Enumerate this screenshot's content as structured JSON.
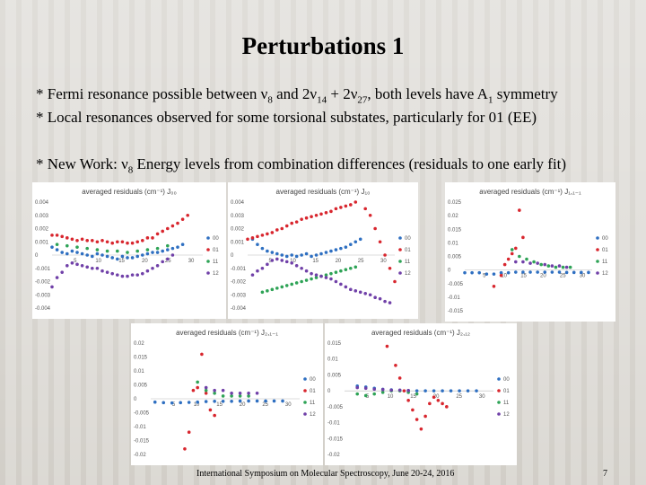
{
  "slide": {
    "title": "Perturbations 1",
    "bullet1_prefix": "* Fermi resonance possible between ν",
    "bullet1_sub1": "8",
    "bullet1_mid": " and 2ν",
    "bullet1_sub2": "14",
    "bullet1_mid2": " + 2ν",
    "bullet1_sub3": "27",
    "bullet1_mid3": ", both levels have A",
    "bullet1_sub4": "1",
    "bullet1_suffix": " symmetry",
    "bullet2": "* Local resonances observed for some torsional substates, particularly for 01 (EE)",
    "bullet3_prefix": "*  New Work: ν",
    "bullet3_sub": "8",
    "bullet3_suffix": " Energy levels from combination differences (residuals to one early fit)",
    "footer": "International Symposium on Molecular Spectroscopy, June 20-24, 2016",
    "page": "7"
  },
  "colors": {
    "00": "#2e6fc1",
    "01": "#d8262e",
    "11": "#2ea356",
    "12": "#7040a8"
  },
  "chart_data": [
    {
      "type": "scatter",
      "title": "averaged residuals (cm⁻¹)  J₀₀",
      "ylim": [
        -0.004,
        0.004
      ],
      "yticks": [
        "0.004",
        "0.003",
        "0.002",
        "0.001",
        "0",
        "-0.001",
        "-0.002",
        "-0.003",
        "-0.004"
      ],
      "xticks": [
        "5",
        "10",
        "15",
        "20",
        "25",
        "30"
      ],
      "xlim": [
        0,
        30
      ],
      "legend": [
        "00",
        "01",
        "11",
        "12"
      ],
      "series": [
        {
          "name": "00",
          "x": [
            0,
            1,
            2,
            3,
            4,
            5,
            6,
            7,
            8,
            9,
            10,
            11,
            12,
            13,
            14,
            15,
            16,
            17,
            18,
            19,
            20,
            21,
            22,
            23,
            24,
            25,
            26
          ],
          "y": [
            0.0006,
            0.0004,
            0.0002,
            0.0001,
            0.0003,
            0.0002,
            0.0001,
            0.0,
            -0.0001,
            0.0001,
            0.0,
            -0.0001,
            -0.0002,
            -0.0003,
            -0.0001,
            -0.0002,
            -0.0002,
            -0.0001,
            0.0,
            0.0001,
            0.0002,
            0.0002,
            0.0003,
            0.0004,
            0.0005,
            0.0006,
            0.0008
          ]
        },
        {
          "name": "01",
          "x": [
            0,
            1,
            2,
            3,
            4,
            5,
            6,
            7,
            8,
            9,
            10,
            11,
            12,
            13,
            14,
            15,
            16,
            17,
            18,
            19,
            20,
            21,
            22,
            23,
            24,
            25,
            26,
            27
          ],
          "y": [
            0.0015,
            0.0015,
            0.0014,
            0.0013,
            0.0012,
            0.0011,
            0.0012,
            0.0011,
            0.0011,
            0.001,
            0.0011,
            0.001,
            0.0009,
            0.001,
            0.001,
            0.0009,
            0.0009,
            0.001,
            0.0011,
            0.0013,
            0.0013,
            0.0016,
            0.0018,
            0.002,
            0.0022,
            0.0024,
            0.0027,
            0.003
          ]
        },
        {
          "name": "11",
          "x": [
            1,
            3,
            5,
            7,
            9,
            11,
            13,
            15,
            17,
            19,
            21,
            23
          ],
          "y": [
            0.0008,
            0.0007,
            0.0006,
            0.0005,
            0.0004,
            0.0003,
            0.0003,
            0.0002,
            0.0003,
            0.0004,
            0.0005,
            0.0007
          ]
        },
        {
          "name": "12",
          "x": [
            0,
            1,
            2,
            3,
            4,
            5,
            6,
            7,
            8,
            9,
            10,
            11,
            12,
            13,
            14,
            15,
            16,
            17,
            18,
            19,
            20,
            21,
            22,
            23,
            24
          ],
          "y": [
            -0.0024,
            -0.0017,
            -0.0013,
            -0.0008,
            -0.0006,
            -0.0007,
            -0.0008,
            -0.0009,
            -0.001,
            -0.001,
            -0.0012,
            -0.0013,
            -0.0014,
            -0.0015,
            -0.0016,
            -0.0016,
            -0.0015,
            -0.0015,
            -0.0014,
            -0.0012,
            -0.001,
            -0.0008,
            -0.0005,
            -0.0003,
            0.0
          ]
        }
      ]
    },
    {
      "type": "scatter",
      "title": "averaged residuals (cm⁻¹)  J₁₀",
      "ylim": [
        -0.004,
        0.004
      ],
      "yticks": [
        "0.004",
        "0.003",
        "0.002",
        "0.001",
        "0",
        "-0.001",
        "-0.002",
        "-0.003",
        "-0.004"
      ],
      "xticks": [
        "5",
        "10",
        "15",
        "20",
        "25",
        "30"
      ],
      "xlim": [
        0,
        30
      ],
      "legend": [
        "00",
        "01",
        "11",
        "12"
      ],
      "series": [
        {
          "name": "00",
          "x": [
            1,
            2,
            3,
            4,
            5,
            6,
            7,
            8,
            9,
            10,
            11,
            12,
            13,
            14,
            15,
            16,
            17,
            18,
            19,
            20,
            21,
            22,
            23
          ],
          "y": [
            0.0012,
            0.0008,
            0.0005,
            0.0003,
            0.0002,
            0.0001,
            0.0,
            -0.0001,
            0.0,
            -0.0001,
            0.0,
            0.0001,
            -0.0001,
            0.0,
            0.0001,
            0.0002,
            0.0003,
            0.0004,
            0.0005,
            0.0006,
            0.0008,
            0.001,
            0.0012
          ]
        },
        {
          "name": "01",
          "x": [
            0,
            1,
            2,
            3,
            4,
            5,
            6,
            7,
            8,
            9,
            10,
            11,
            12,
            13,
            14,
            15,
            16,
            17,
            18,
            19,
            20,
            21,
            22,
            23,
            24,
            25,
            26,
            27,
            28,
            29,
            30
          ],
          "y": [
            0.0012,
            0.0013,
            0.0014,
            0.0015,
            0.0016,
            0.0017,
            0.0019,
            0.002,
            0.0022,
            0.0024,
            0.0025,
            0.0027,
            0.0028,
            0.0029,
            0.003,
            0.0031,
            0.0032,
            0.0033,
            0.0035,
            0.0036,
            0.0037,
            0.0038,
            0.004,
            0.0042,
            0.0035,
            0.003,
            0.002,
            0.001,
            0.0,
            -0.001,
            -0.002
          ]
        },
        {
          "name": "11",
          "x": [
            3,
            4,
            5,
            6,
            7,
            8,
            9,
            10,
            11,
            12,
            13,
            14,
            15,
            16,
            17,
            18,
            19,
            20,
            21,
            22
          ],
          "y": [
            -0.0028,
            -0.0027,
            -0.0026,
            -0.0025,
            -0.0024,
            -0.0023,
            -0.0022,
            -0.0021,
            -0.002,
            -0.0019,
            -0.0018,
            -0.0017,
            -0.0016,
            -0.0015,
            -0.0014,
            -0.0013,
            -0.0012,
            -0.0011,
            -0.001,
            -0.0009
          ]
        },
        {
          "name": "12",
          "x": [
            1,
            2,
            3,
            4,
            5,
            6,
            7,
            8,
            9,
            10,
            11,
            12,
            13,
            14,
            15,
            16,
            17,
            18,
            19,
            20,
            21,
            22,
            23,
            24,
            25,
            26,
            27,
            28,
            29
          ],
          "y": [
            -0.0015,
            -0.0012,
            -0.001,
            -0.0007,
            -0.0004,
            -0.0003,
            -0.0004,
            -0.0005,
            -0.0006,
            -0.0008,
            -0.001,
            -0.0012,
            -0.0014,
            -0.0015,
            -0.0016,
            -0.0017,
            -0.0018,
            -0.002,
            -0.0022,
            -0.0024,
            -0.0026,
            -0.0027,
            -0.0028,
            -0.0029,
            -0.003,
            -0.0032,
            -0.0033,
            -0.0035,
            -0.0036
          ]
        }
      ]
    },
    {
      "type": "scatter",
      "title": "averaged residuals (cm⁻¹)  J₁,₁₋₁",
      "ylim": [
        -0.015,
        0.025
      ],
      "yticks": [
        "0.025",
        "0.02",
        "0.015",
        "0.01",
        "0.005",
        "0",
        "-0.005",
        "-0.01",
        "-0.015"
      ],
      "xticks": [
        "5",
        "10",
        "15",
        "20",
        "25",
        "30"
      ],
      "xlim": [
        0,
        35
      ],
      "legend": [
        "00",
        "01",
        "11",
        "12"
      ],
      "series": [
        {
          "name": "00",
          "x": [
            0,
            2,
            4,
            6,
            8,
            10,
            12,
            14,
            16,
            18,
            20,
            22,
            24,
            26,
            28,
            30,
            32,
            34
          ],
          "y": [
            -0.001,
            -0.001,
            -0.001,
            -0.0015,
            -0.0015,
            -0.001,
            -0.001,
            -0.0008,
            -0.0008,
            -0.0008,
            -0.0008,
            -0.0008,
            -0.0008,
            -0.0008,
            -0.0009,
            -0.0009,
            -0.0009,
            -0.0009
          ]
        },
        {
          "name": "01",
          "x": [
            8,
            10,
            11,
            12,
            13,
            14,
            15,
            16
          ],
          "y": [
            -0.006,
            -0.002,
            0.002,
            0.004,
            0.006,
            0.008,
            0.022,
            0.012
          ]
        },
        {
          "name": "11",
          "x": [
            13,
            15,
            17,
            19,
            21,
            23,
            25,
            27,
            29
          ],
          "y": [
            0.0075,
            0.005,
            0.004,
            0.003,
            0.002,
            0.0015,
            0.001,
            0.001,
            0.001
          ]
        },
        {
          "name": "12",
          "x": [
            14,
            16,
            18,
            20,
            22,
            24,
            26,
            28
          ],
          "y": [
            0.003,
            0.003,
            0.0025,
            0.0025,
            0.002,
            0.0015,
            0.0015,
            0.001
          ]
        }
      ]
    },
    {
      "type": "scatter",
      "title": "averaged residuals (cm⁻¹)  J₂,₁₋₁",
      "ylim": [
        -0.02,
        0.02
      ],
      "yticks": [
        "0.02",
        "0.015",
        "0.01",
        "0.005",
        "0",
        "-0.005",
        "-0.01",
        "-0.015",
        "-0.02"
      ],
      "xticks": [
        "5",
        "10",
        "15",
        "20",
        "25",
        "30"
      ],
      "xlim": [
        0,
        35
      ],
      "legend": [
        "00",
        "01",
        "11",
        "12"
      ],
      "series": [
        {
          "name": "00",
          "x": [
            1,
            3,
            5,
            7,
            9,
            11,
            13,
            15,
            17,
            19,
            21,
            23,
            25,
            27,
            29,
            31
          ],
          "y": [
            -0.0012,
            -0.0014,
            -0.0015,
            -0.0014,
            -0.0013,
            -0.0012,
            -0.001,
            -0.0009,
            -0.0009,
            -0.0009,
            -0.0008,
            -0.0008,
            -0.0008,
            -0.0008,
            -0.0008,
            -0.0008
          ]
        },
        {
          "name": "01",
          "x": [
            8,
            9,
            10,
            11,
            12,
            13,
            14,
            15
          ],
          "y": [
            -0.018,
            -0.012,
            0.003,
            0.004,
            0.016,
            0.002,
            -0.004,
            -0.006
          ]
        },
        {
          "name": "11",
          "x": [
            11,
            13,
            15,
            17,
            19,
            21,
            23
          ],
          "y": [
            0.006,
            0.003,
            0.002,
            0.001,
            0.001,
            0.001,
            0.001
          ]
        },
        {
          "name": "12",
          "x": [
            13,
            15,
            17,
            19,
            21,
            23,
            25
          ],
          "y": [
            0.004,
            0.003,
            0.003,
            0.002,
            0.002,
            0.002,
            0.002
          ]
        }
      ]
    },
    {
      "type": "scatter",
      "title": "averaged residuals (cm⁻¹)  J₂,₁₂",
      "ylim": [
        -0.02,
        0.015
      ],
      "yticks": [
        "0.015",
        "0.01",
        "0.005",
        "0",
        "-0.005",
        "-0.01",
        "-0.015",
        "-0.02"
      ],
      "xticks": [
        "5",
        "10",
        "15",
        "20",
        "25",
        "30"
      ],
      "xlim": [
        0,
        35
      ],
      "legend": [
        "00",
        "01",
        "11",
        "12"
      ],
      "series": [
        {
          "name": "00",
          "x": [
            3,
            5,
            7,
            9,
            11,
            13,
            15,
            17,
            19,
            21,
            23,
            25,
            27,
            29,
            31
          ],
          "y": [
            0.0015,
            0.0012,
            0.0008,
            0.0005,
            0.0003,
            0.0002,
            0.0001,
            0.0,
            0.0,
            0.0,
            0.0,
            0.0,
            0.0,
            0.0,
            0.0
          ]
        },
        {
          "name": "01",
          "x": [
            10,
            12,
            13,
            14,
            15,
            16,
            17,
            18,
            19,
            20,
            21,
            22,
            23,
            24
          ],
          "y": [
            0.014,
            0.008,
            0.004,
            0.0,
            -0.003,
            -0.006,
            -0.009,
            -0.012,
            -0.008,
            -0.004,
            -0.002,
            -0.003,
            -0.004,
            -0.005
          ]
        },
        {
          "name": "11",
          "x": [
            3,
            5,
            7,
            9,
            11,
            13,
            15,
            17
          ],
          "y": [
            -0.001,
            -0.0015,
            -0.001,
            -0.0005,
            0.0,
            0.0,
            -0.0005,
            -0.001
          ]
        },
        {
          "name": "12",
          "x": [
            3,
            5,
            7,
            9,
            11,
            13,
            15
          ],
          "y": [
            0.001,
            0.0008,
            0.0005,
            0.0004,
            0.0002,
            0.0002,
            0.0001
          ]
        }
      ]
    }
  ]
}
